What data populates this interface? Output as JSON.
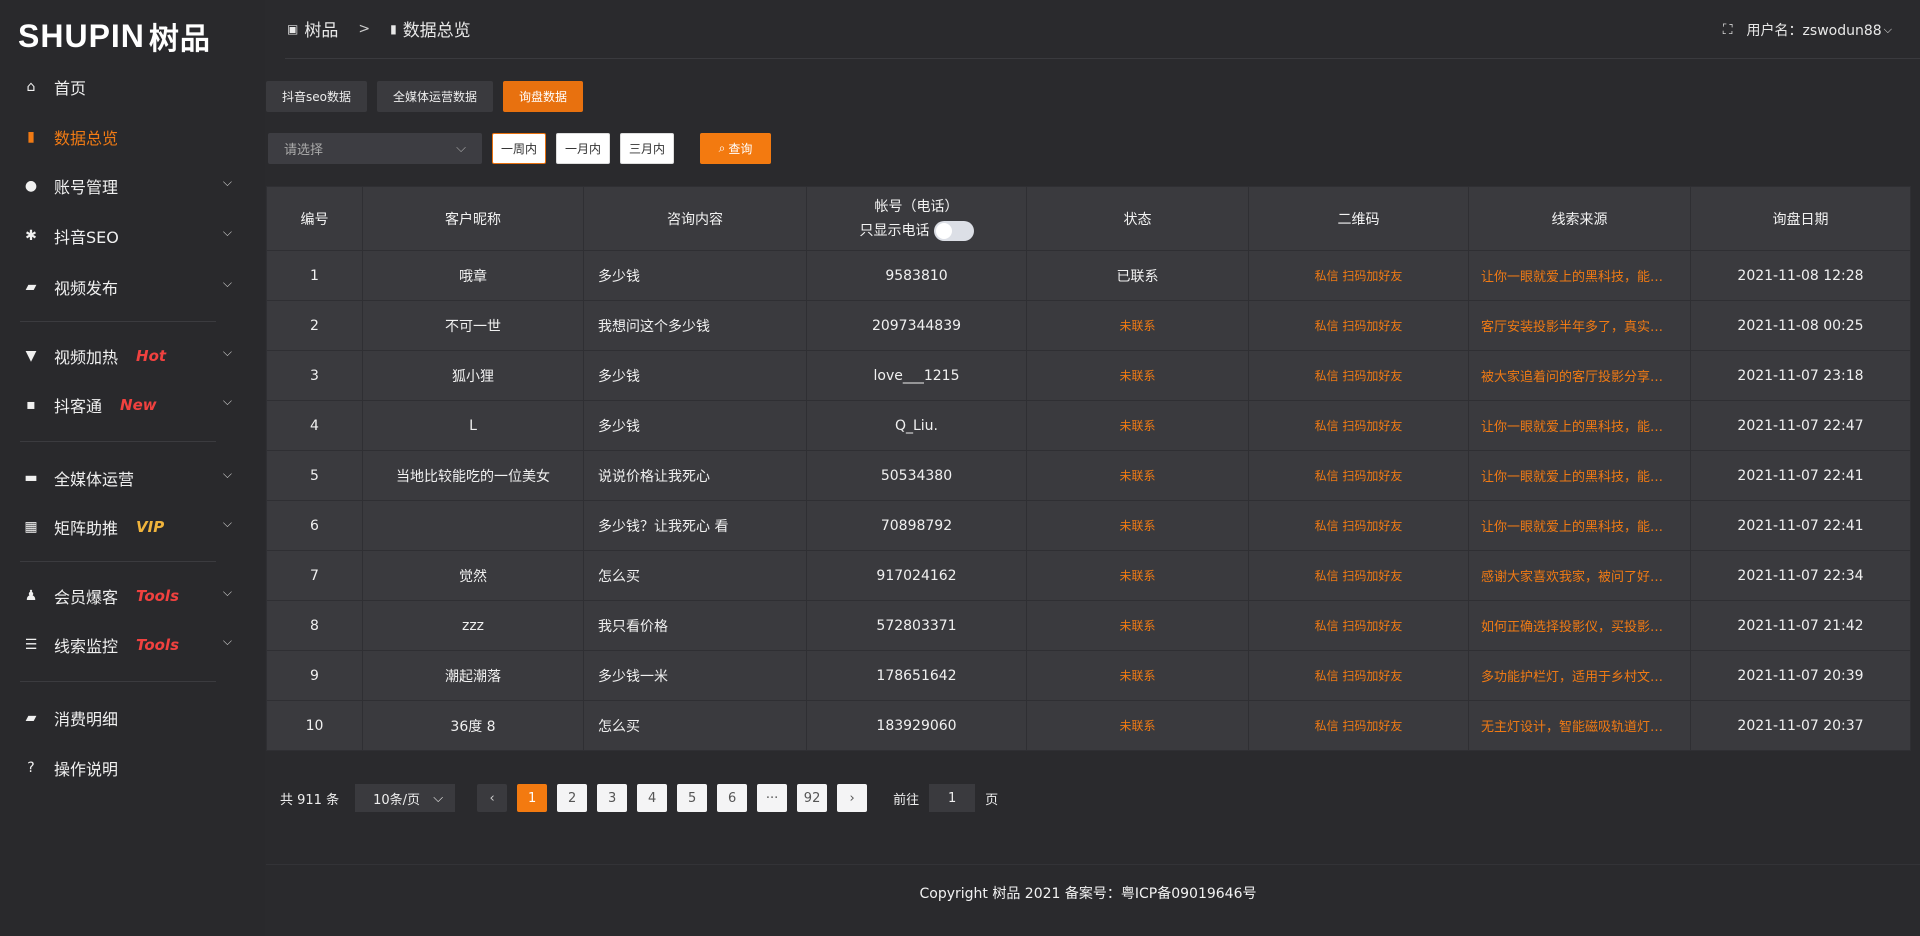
{
  "logo": {
    "text": "SHUPIN",
    "cn": "树品"
  },
  "sidebar": {
    "items": [
      {
        "label": "首页",
        "icon": "home-icon",
        "glyph": "⌂"
      },
      {
        "label": "数据总览",
        "icon": "bar-chart-icon",
        "glyph": "▮",
        "active": true
      },
      {
        "label": "账号管理",
        "icon": "user-icon",
        "glyph": "●",
        "chev": true
      },
      {
        "label": "抖音SEO",
        "icon": "gear-icon",
        "glyph": "✱",
        "chev": true
      },
      {
        "label": "视频发布",
        "icon": "video-icon",
        "glyph": "▰",
        "chev": true
      },
      {
        "label": "视频加热",
        "icon": "flag-icon",
        "glyph": "▼",
        "badge": "Hot",
        "badge_color": "#f0413f",
        "chev": true
      },
      {
        "label": "抖客通",
        "icon": "chat-icon",
        "glyph": "▪",
        "badge": "New",
        "badge_color": "#f0413f",
        "chev": true
      },
      {
        "label": "全媒体运营",
        "icon": "monitor-icon",
        "glyph": "▬",
        "chev": true
      },
      {
        "label": "矩阵助推",
        "icon": "grid-icon",
        "glyph": "▦",
        "badge": "VIP",
        "badge_color": "#f0b43c",
        "chev": true
      },
      {
        "label": "会员爆客",
        "icon": "member-icon",
        "glyph": "♟",
        "badge": "Tools",
        "badge_color": "#f0413f",
        "chev": true
      },
      {
        "label": "线索监控",
        "icon": "sliders-icon",
        "glyph": "☰",
        "badge": "Tools",
        "badge_color": "#f0413f",
        "chev": true
      },
      {
        "label": "消费明细",
        "icon": "wallet-icon",
        "glyph": "▰"
      },
      {
        "label": "操作说明",
        "icon": "help-icon",
        "glyph": "?"
      }
    ]
  },
  "header": {
    "crumb1": "树品",
    "sep": ">",
    "crumb2": "数据总览",
    "user_label": "用户名：zswodun88"
  },
  "tabs": [
    {
      "label": "抖音seo数据"
    },
    {
      "label": "全媒体运营数据"
    },
    {
      "label": "询盘数据",
      "active": true
    }
  ],
  "filters": {
    "select_placeholder": "请选择",
    "ranges": [
      "一周内",
      "一月内",
      "三月内"
    ],
    "query": "查询"
  },
  "table": {
    "columns": [
      "编号",
      "客户昵称",
      "咨询内容",
      "帐号（电话）",
      "状态",
      "二维码",
      "线索来源",
      "询盘日期"
    ],
    "phone_toggle_label": "只显示电话",
    "rows": [
      [
        "1",
        "哦章",
        "多少钱",
        "9583810",
        "已联系",
        "私信 扫码加好友",
        "让你一眼就爱上的黑科技，能…",
        "2021-11-08 12:28"
      ],
      [
        "2",
        "不可一世",
        "我想问这个多少钱",
        "2097344839",
        "未联系",
        "私信 扫码加好友",
        "客厅安装投影半年多了，真实…",
        "2021-11-08 00:25"
      ],
      [
        "3",
        "狐小狸",
        "多少钱",
        "love___1215",
        "未联系",
        "私信 扫码加好友",
        "被大家追着问的客厅投影分享…",
        "2021-11-07 23:18"
      ],
      [
        "4",
        "L",
        "多少钱",
        "Q_Liu.",
        "未联系",
        "私信 扫码加好友",
        "让你一眼就爱上的黑科技，能…",
        "2021-11-07 22:47"
      ],
      [
        "5",
        "当地比较能吃的一位美女",
        "说说价格让我死心",
        "50534380",
        "未联系",
        "私信 扫码加好友",
        "让你一眼就爱上的黑科技，能…",
        "2021-11-07 22:41"
      ],
      [
        "6",
        "",
        "多少钱？让我死心 看",
        "70898792",
        "未联系",
        "私信 扫码加好友",
        "让你一眼就爱上的黑科技，能…",
        "2021-11-07 22:41"
      ],
      [
        "7",
        "觉然",
        "怎么买",
        "917024162",
        "未联系",
        "私信 扫码加好友",
        "感谢大家喜欢我家，被问了好…",
        "2021-11-07 22:34"
      ],
      [
        "8",
        "zzz",
        "我只看价格",
        "572803371",
        "未联系",
        "私信 扫码加好友",
        "如何正确选择投影仪，买投影…",
        "2021-11-07 21:42"
      ],
      [
        "9",
        "潮起潮落",
        "多少钱一米",
        "178651642",
        "未联系",
        "私信 扫码加好友",
        "多功能护栏灯，适用于乡村文…",
        "2021-11-07 20:39"
      ],
      [
        "10",
        "36度 8",
        "怎么买",
        "183929060",
        "未联系",
        "私信 扫码加好友",
        "无主灯设计，智能磁吸轨道灯…",
        "2021-11-07 20:37"
      ]
    ]
  },
  "pager": {
    "total": "共 911 条",
    "page_size": "10条/页",
    "prev": "‹",
    "pages": [
      "1",
      "2",
      "3",
      "4",
      "5",
      "6",
      "···",
      "92"
    ],
    "current": "1",
    "next": "›",
    "goto_label": "前往",
    "goto_value": "1",
    "page_unit": "页"
  },
  "footer": {
    "copyright": "Copyright 树品 2021 备案号：粤ICP备09019646号"
  },
  "colors": {
    "accent": "#f37a10",
    "bg": "#2a2a2d",
    "panel": "#3a3a3e"
  }
}
